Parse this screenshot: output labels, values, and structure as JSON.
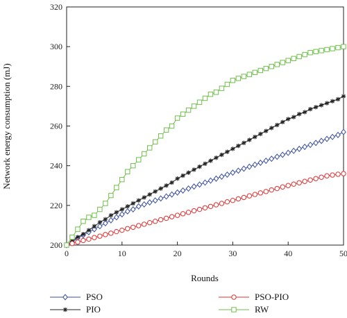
{
  "chart_data": {
    "type": "line",
    "xlabel": "Rounds",
    "ylabel": "Network energy consumption (mJ)",
    "xlim": [
      0,
      50
    ],
    "ylim": [
      200,
      320
    ],
    "xticks": [
      0,
      10,
      20,
      30,
      40,
      50
    ],
    "yticks": [
      200,
      220,
      240,
      260,
      280,
      300,
      320
    ],
    "grid": false,
    "legend_position": "bottom",
    "x": [
      0,
      1,
      2,
      3,
      4,
      5,
      6,
      7,
      8,
      9,
      10,
      11,
      12,
      13,
      14,
      15,
      16,
      17,
      18,
      19,
      20,
      21,
      22,
      23,
      24,
      25,
      26,
      27,
      28,
      29,
      30,
      31,
      32,
      33,
      34,
      35,
      36,
      37,
      38,
      39,
      40,
      41,
      42,
      43,
      44,
      45,
      46,
      47,
      48,
      49,
      50
    ],
    "series": [
      {
        "name": "PSO",
        "color": "#3a4fa0",
        "marker": "diamond-icon",
        "values": [
          200,
          201.5,
          203.5,
          205,
          206.5,
          208,
          209.5,
          211,
          212.5,
          214,
          215.5,
          217,
          218,
          219.5,
          220.5,
          221.5,
          222.5,
          223.5,
          224.5,
          225.5,
          226.5,
          227.5,
          228.5,
          229.5,
          230.5,
          231.5,
          232.5,
          233.5,
          234.5,
          235.5,
          236.5,
          237.5,
          238.5,
          239.5,
          240.5,
          241.5,
          242.5,
          243.5,
          244.5,
          245.5,
          246.5,
          247.5,
          248.5,
          249.5,
          250.5,
          251.5,
          252.5,
          253.5,
          254.5,
          255.5,
          257
        ]
      },
      {
        "name": "PIO",
        "color": "#222222",
        "marker": "asterisk-icon",
        "values": [
          200,
          202,
          204,
          205.5,
          207.5,
          209.5,
          211.5,
          213,
          215,
          216.5,
          218,
          219.5,
          221,
          222.5,
          224,
          225.5,
          227,
          228.5,
          230,
          231.5,
          233.5,
          235,
          236.5,
          238,
          239.5,
          241,
          242.5,
          244,
          245.5,
          247,
          248.5,
          250,
          251.5,
          253,
          254.5,
          256,
          257.5,
          259,
          260.5,
          262,
          263.5,
          264.5,
          266,
          267,
          268.5,
          269.5,
          270.5,
          271.5,
          272.5,
          273.5,
          275
        ]
      },
      {
        "name": "PSO-PIO",
        "color": "#e03030",
        "marker": "circle-icon",
        "values": [
          200,
          200.8,
          201.5,
          202.3,
          203,
          203.8,
          204.5,
          205.3,
          206,
          206.8,
          207.5,
          208.3,
          209,
          209.8,
          210.5,
          211.3,
          212,
          212.8,
          213.5,
          214.3,
          215,
          215.8,
          216.5,
          217.3,
          218,
          218.8,
          219.5,
          220.3,
          221,
          221.8,
          222.5,
          223.3,
          224,
          224.8,
          225.5,
          226.3,
          227,
          227.8,
          228.5,
          229.3,
          230,
          230.7,
          231.4,
          232.1,
          232.8,
          233.5,
          234.2,
          234.9,
          235.3,
          235.7,
          236
        ]
      },
      {
        "name": "RW",
        "color": "#6fbf4a",
        "marker": "square-icon",
        "values": [
          200,
          204,
          208,
          212,
          214,
          215,
          218,
          221,
          225,
          229,
          233,
          237,
          240,
          243,
          246,
          249,
          252,
          255,
          258,
          260,
          264,
          266,
          268,
          270,
          272,
          274,
          276,
          277,
          279,
          281,
          283,
          284,
          285,
          286,
          287,
          288,
          289,
          290,
          291,
          292,
          293,
          294,
          295,
          296,
          297,
          297.5,
          298,
          298.5,
          299,
          299.5,
          300
        ]
      }
    ]
  }
}
